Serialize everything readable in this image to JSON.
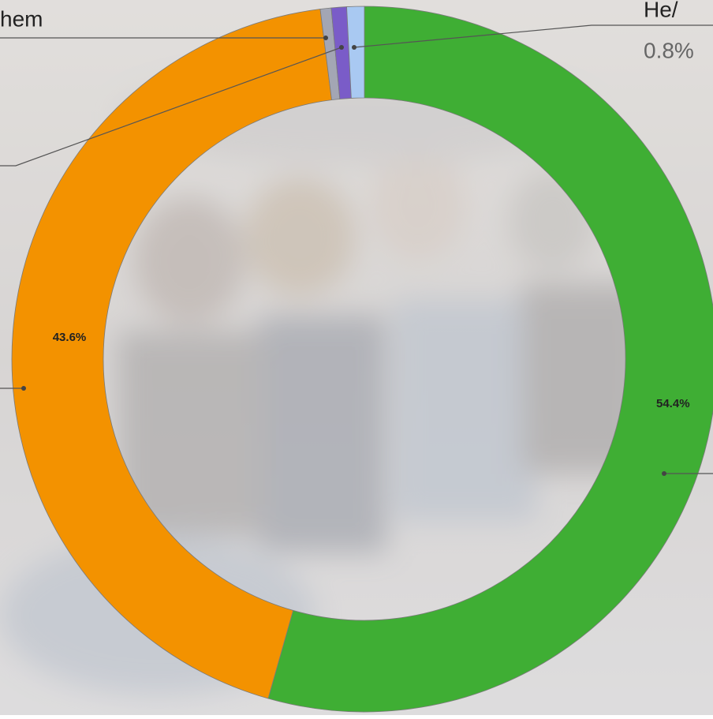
{
  "chart_data": {
    "type": "pie",
    "donut": true,
    "categories": [
      null,
      null,
      "hem",
      null,
      "He/"
    ],
    "values": [
      54.4,
      43.6,
      0.5,
      0.7,
      0.8
    ],
    "value_labels": [
      "54.4%",
      "43.6%",
      null,
      null,
      "0.8%"
    ],
    "colors": [
      "#3fae34",
      "#f39200",
      "#a3a6b4",
      "#7a5cc8",
      "#a9c9f2"
    ]
  }
}
